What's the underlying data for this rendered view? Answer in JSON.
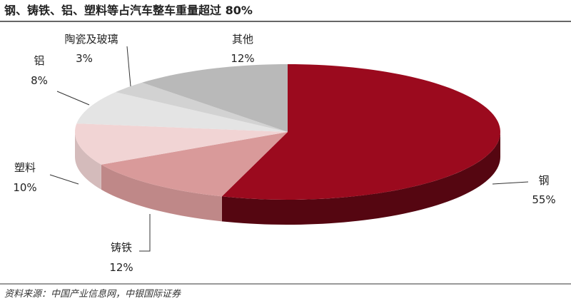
{
  "chart_data": {
    "type": "pie3d",
    "title": "钢、铸铁、铝、塑料等占汽车整车重量超过 80%",
    "categories": [
      "钢",
      "铸铁",
      "塑料",
      "铝",
      "陶瓷及玻璃",
      "其他"
    ],
    "values": [
      55,
      12,
      10,
      8,
      3,
      12
    ],
    "value_labels": [
      "55%",
      "12%",
      "10%",
      "8%",
      "3%",
      "12%"
    ],
    "colors": [
      "#9b0a1e",
      "#d99a9a",
      "#f1d4d4",
      "#e4e4e4",
      "#d2d2d2",
      "#b9b9b9"
    ],
    "source": "资料来源：中国产业信息网，中银国际证券"
  }
}
